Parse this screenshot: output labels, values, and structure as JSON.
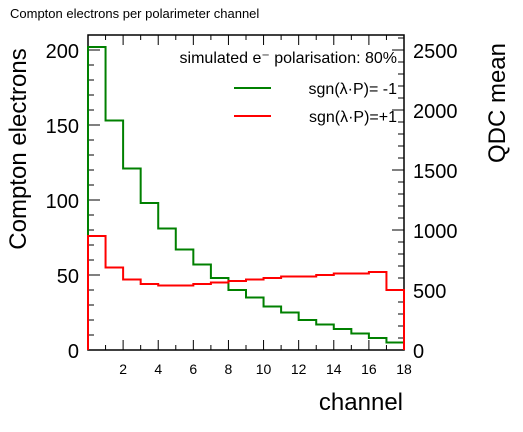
{
  "chart_data": {
    "type": "step",
    "title": "Compton electrons per polarimeter channel",
    "xlabel": "channel",
    "ylabel_left": "Compton electrons",
    "ylabel_right": "QDC mean",
    "xlim": [
      0,
      18
    ],
    "ylim_left": [
      0,
      210
    ],
    "ylim_right": [
      0,
      2625
    ],
    "x_ticks": [
      2,
      4,
      6,
      8,
      10,
      12,
      14,
      16,
      18
    ],
    "y_ticks_left": [
      0,
      50,
      100,
      150,
      200
    ],
    "y_ticks_right": [
      0,
      500,
      1000,
      1500,
      2000,
      2500
    ],
    "legend": {
      "header": "simulated e⁻ polarisation: 80%",
      "entries": [
        "sgn(λ·P)= -1",
        "sgn(λ·P)=+1"
      ],
      "position": "top-right"
    },
    "series": [
      {
        "name": "sgn(λ·P)= -1",
        "color": "#008000",
        "bins": [
          [
            0,
            1,
            202
          ],
          [
            1,
            2,
            153
          ],
          [
            2,
            3,
            121
          ],
          [
            3,
            4,
            98
          ],
          [
            4,
            5,
            81
          ],
          [
            5,
            6,
            67
          ],
          [
            6,
            7,
            57
          ],
          [
            7,
            8,
            48
          ],
          [
            8,
            9,
            40
          ],
          [
            9,
            10,
            35
          ],
          [
            10,
            11,
            29
          ],
          [
            11,
            12,
            25
          ],
          [
            12,
            13,
            20
          ],
          [
            13,
            14,
            17
          ],
          [
            14,
            15,
            14
          ],
          [
            15,
            16,
            11
          ],
          [
            16,
            17,
            8
          ],
          [
            17,
            18,
            5
          ]
        ]
      },
      {
        "name": "sgn(λ·P)=+1",
        "color": "#ff0000",
        "bins": [
          [
            0,
            1,
            76
          ],
          [
            1,
            2,
            55
          ],
          [
            2,
            3,
            47
          ],
          [
            3,
            4,
            44
          ],
          [
            4,
            5,
            43
          ],
          [
            5,
            6,
            43
          ],
          [
            6,
            7,
            44
          ],
          [
            7,
            8,
            45
          ],
          [
            8,
            9,
            46
          ],
          [
            9,
            10,
            47
          ],
          [
            10,
            11,
            48
          ],
          [
            11,
            12,
            49
          ],
          [
            12,
            13,
            49
          ],
          [
            13,
            14,
            50
          ],
          [
            14,
            15,
            51
          ],
          [
            15,
            16,
            51
          ],
          [
            16,
            17,
            52
          ],
          [
            17,
            18,
            40
          ]
        ]
      }
    ]
  }
}
